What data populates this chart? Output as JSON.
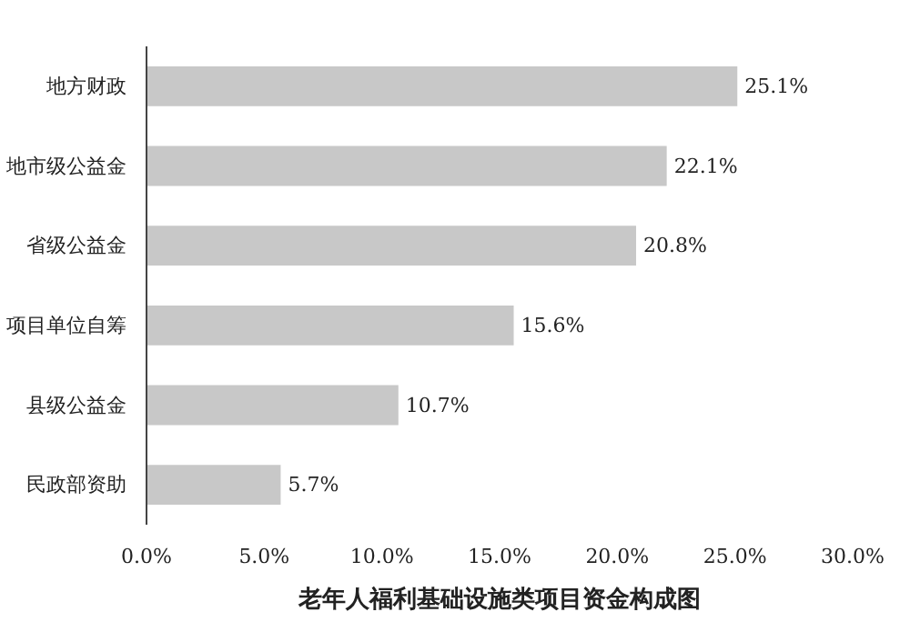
{
  "chart_data": {
    "type": "bar",
    "orientation": "horizontal",
    "title": "老年人福利基础设施类项目资金构成图",
    "categories": [
      "地方财政",
      "地市级公益金",
      "省级公益金",
      "项目单位自筹",
      "县级公益金",
      "民政部资助"
    ],
    "values": [
      25.1,
      22.1,
      20.8,
      15.6,
      10.7,
      5.7
    ],
    "value_labels": [
      "25.1%",
      "22.1%",
      "20.8%",
      "15.6%",
      "10.7%",
      "5.7%"
    ],
    "color": "#c8c8c8",
    "xlim": [
      0,
      30
    ],
    "xticks": [
      {
        "value": 0,
        "label": "0.0%"
      },
      {
        "value": 5,
        "label": "5.0%"
      },
      {
        "value": 10,
        "label": "10.0%"
      },
      {
        "value": 15,
        "label": "15.0%"
      },
      {
        "value": 20,
        "label": "20.0%"
      },
      {
        "value": 25,
        "label": "25.0%"
      },
      {
        "value": 30,
        "label": "30.0%"
      }
    ],
    "grid": false
  }
}
